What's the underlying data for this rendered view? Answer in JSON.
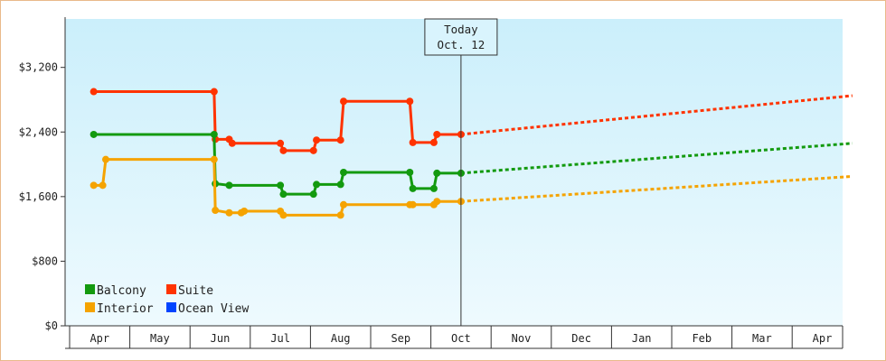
{
  "chart_data": {
    "type": "line",
    "title": "",
    "xlabel": "",
    "ylabel": "",
    "ylim": [
      0,
      3800
    ],
    "grid": false,
    "legend_position": "bottom-left",
    "y_ticks": [
      {
        "value": 0,
        "label": "$0"
      },
      {
        "value": 800,
        "label": "$800"
      },
      {
        "value": 1600,
        "label": "$1,600"
      },
      {
        "value": 2400,
        "label": "$2,400"
      },
      {
        "value": 3200,
        "label": "$3,200"
      }
    ],
    "x_months": [
      "Apr",
      "May",
      "Jun",
      "Jul",
      "Aug",
      "Sep",
      "Oct",
      "Nov",
      "Dec",
      "Jan",
      "Feb",
      "Mar",
      "Apr"
    ],
    "today_marker": {
      "line1": "Today",
      "line2": "Oct. 12",
      "x": 6.0
    },
    "series": [
      {
        "name": "Suite",
        "color": "#ff3300",
        "points": [
          [
            -0.1,
            2900
          ],
          [
            1.9,
            2900
          ],
          [
            1.92,
            2310
          ],
          [
            2.15,
            2310
          ],
          [
            2.2,
            2260
          ],
          [
            3.0,
            2260
          ],
          [
            3.05,
            2170
          ],
          [
            3.55,
            2170
          ],
          [
            3.6,
            2300
          ],
          [
            4.0,
            2300
          ],
          [
            4.05,
            2780
          ],
          [
            5.15,
            2780
          ],
          [
            5.2,
            2270
          ],
          [
            5.55,
            2270
          ],
          [
            5.6,
            2370
          ],
          [
            6.0,
            2370
          ]
        ],
        "projection": [
          [
            6.0,
            2370
          ],
          [
            12.5,
            2850
          ]
        ]
      },
      {
        "name": "Balcony",
        "color": "#139a0f",
        "points": [
          [
            -0.1,
            2370
          ],
          [
            1.9,
            2370
          ],
          [
            1.92,
            1760
          ],
          [
            2.15,
            1740
          ],
          [
            3.0,
            1740
          ],
          [
            3.05,
            1630
          ],
          [
            3.55,
            1630
          ],
          [
            3.6,
            1750
          ],
          [
            4.0,
            1750
          ],
          [
            4.05,
            1900
          ],
          [
            5.15,
            1900
          ],
          [
            5.2,
            1700
          ],
          [
            5.55,
            1700
          ],
          [
            5.6,
            1890
          ],
          [
            6.0,
            1890
          ]
        ],
        "projection": [
          [
            6.0,
            1890
          ],
          [
            12.5,
            2260
          ]
        ]
      },
      {
        "name": "Interior",
        "color": "#f5a300",
        "points": [
          [
            -0.1,
            1740
          ],
          [
            0.05,
            1740
          ],
          [
            0.1,
            2060
          ],
          [
            1.9,
            2060
          ],
          [
            1.92,
            1430
          ],
          [
            2.15,
            1400
          ],
          [
            2.35,
            1400
          ],
          [
            2.4,
            1420
          ],
          [
            3.0,
            1420
          ],
          [
            3.05,
            1370
          ],
          [
            4.0,
            1370
          ],
          [
            4.05,
            1500
          ],
          [
            5.15,
            1500
          ],
          [
            5.2,
            1500
          ],
          [
            5.55,
            1500
          ],
          [
            5.6,
            1540
          ],
          [
            6.0,
            1540
          ]
        ],
        "projection": [
          [
            6.0,
            1540
          ],
          [
            12.5,
            1850
          ]
        ]
      },
      {
        "name": "Ocean View",
        "color": "#0044ff",
        "points": [],
        "projection": []
      }
    ],
    "legend": [
      {
        "label": "Balcony",
        "color": "#139a0f"
      },
      {
        "label": "Suite",
        "color": "#ff3300"
      },
      {
        "label": "Interior",
        "color": "#f5a300"
      },
      {
        "label": "Ocean View",
        "color": "#0044ff"
      }
    ]
  }
}
